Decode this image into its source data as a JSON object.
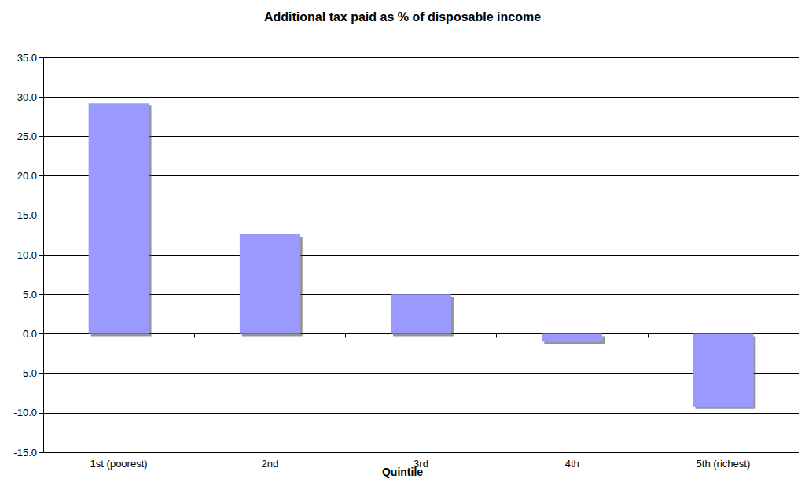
{
  "chart_data": {
    "type": "bar",
    "title": "Additional tax paid as % of disposable income",
    "x_label": "Quintile",
    "categories": [
      "1st (poorest)",
      "2nd",
      "3rd",
      "4th",
      "5th (richest)"
    ],
    "values": [
      29.2,
      12.6,
      5.0,
      -1.0,
      -9.2
    ],
    "color": "#9999ff",
    "ylim": [
      -15,
      35
    ],
    "yticks": [
      {
        "value": -15,
        "label": "-15.0"
      },
      {
        "value": -10,
        "label": "-10.0"
      },
      {
        "value": -5,
        "label": "-5.0"
      },
      {
        "value": 0,
        "label": "0.0"
      },
      {
        "value": 5,
        "label": "5.0"
      },
      {
        "value": 10,
        "label": "10.0"
      },
      {
        "value": 15,
        "label": "15.0"
      },
      {
        "value": 20,
        "label": "20.0"
      },
      {
        "value": 25,
        "label": "25.0"
      },
      {
        "value": 30,
        "label": "30.0"
      },
      {
        "value": 35,
        "label": "35.0"
      }
    ],
    "grid": true
  }
}
